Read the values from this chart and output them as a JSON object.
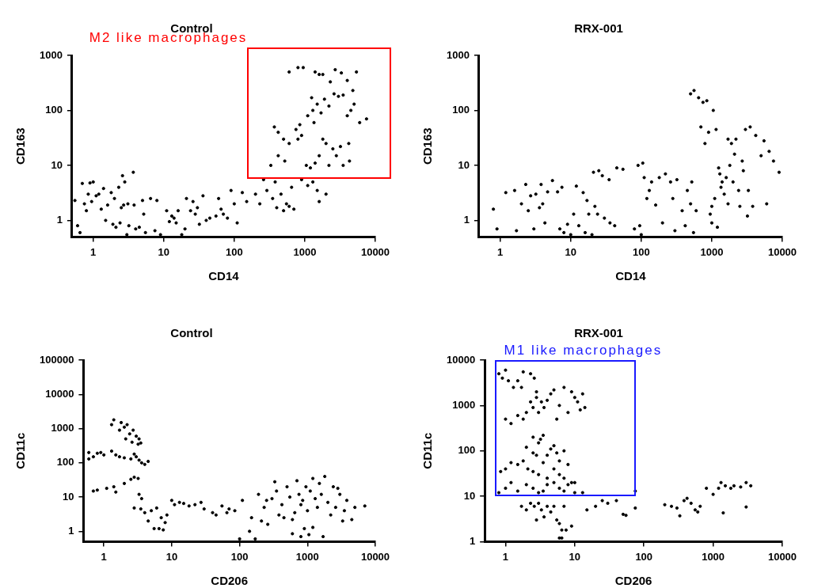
{
  "chart_data": [
    {
      "type": "scatter",
      "title": "Control",
      "xlabel": "CD14",
      "ylabel": "CD163",
      "annotations": [
        "M2 like macrophages"
      ],
      "log": "xy",
      "marker": "circle",
      "xlim": [
        0.5,
        10000
      ],
      "ylim": [
        0.5,
        1000
      ],
      "xticks": [
        1,
        10,
        100,
        1000,
        10000
      ],
      "yticks": [
        1,
        10,
        100,
        1000
      ],
      "series": [
        {
          "color": "#000000",
          "x": [
            0.55,
            0.6,
            0.65,
            0.7,
            0.75,
            0.8,
            0.85,
            0.9,
            0.95,
            1,
            1.1,
            1.2,
            1.3,
            1.4,
            1.5,
            1.6,
            1.8,
            1.9,
            2,
            2.1,
            2.3,
            2.4,
            2.5,
            2.6,
            2.7,
            2.8,
            3,
            3.1,
            3.2,
            3.7,
            3.8,
            4,
            4.5,
            5,
            5.2,
            5.5,
            6.5,
            7.5,
            8,
            9,
            11,
            12,
            13,
            14,
            15,
            16,
            18,
            20,
            21,
            24,
            26,
            28,
            30,
            32,
            36,
            40,
            45,
            55,
            60,
            65,
            70,
            80,
            90,
            100,
            110,
            130,
            150,
            200,
            230,
            260,
            290,
            330,
            350,
            380,
            400,
            420,
            460,
            500,
            520,
            550,
            600,
            650,
            700,
            900,
            1100,
            1300,
            1500,
            1600,
            2000,
            370,
            420,
            500,
            600,
            750,
            800,
            850,
            900,
            1050,
            1200,
            1400,
            1600,
            1800,
            2000,
            2200,
            2500,
            2800,
            3200,
            3500,
            4200,
            4300,
            1100,
            1300,
            1500,
            1700,
            1900,
            2200,
            2600,
            3000,
            3500,
            4000,
            4500,
            5000,
            6000,
            7500,
            1350,
            1250,
            600,
            800,
            950,
            1400,
            1600,
            1800,
            2700,
            3300,
            4000,
            5400,
            4800,
            2300
          ],
          "values": [
            2.3,
            0.8,
            0.6,
            4.7,
            2,
            1.5,
            3,
            4.8,
            2.2,
            5,
            2.8,
            3,
            1.6,
            3.8,
            1,
            1.9,
            3.2,
            0.85,
            2.5,
            0.75,
            4,
            0.9,
            1.7,
            6.5,
            1.9,
            5,
            0.55,
            2,
            0.8,
            7.5,
            1.9,
            0.7,
            0.75,
            2.3,
            1.3,
            0.6,
            2.5,
            0.65,
            2.3,
            0.55,
            1.5,
            0.95,
            1.2,
            1.1,
            0.9,
            1.5,
            0.55,
            0.7,
            2.5,
            1.5,
            2.2,
            1.3,
            1.7,
            0.85,
            2.8,
            1,
            1.1,
            1.2,
            2.5,
            1.6,
            1.3,
            1.1,
            3.5,
            2,
            0.9,
            3.2,
            2.2,
            3,
            2,
            5.5,
            3.5,
            10,
            2.5,
            5,
            1.7,
            15,
            3,
            1.5,
            12,
            2,
            1.8,
            4,
            1.6,
            5.5,
            4.3,
            5,
            3.5,
            2.2,
            3,
            50,
            40,
            30,
            25,
            45,
            30,
            55,
            35,
            10,
            9,
            11,
            15,
            30,
            25,
            10,
            20,
            15,
            22,
            10,
            25,
            12,
            80,
            100,
            130,
            90,
            160,
            120,
            200,
            180,
            190,
            80,
            100,
            130,
            60,
            70,
            60,
            170,
            500,
            600,
            600,
            500,
            450,
            450,
            550,
            480,
            350,
            500,
            230,
            330
          ]
        }
      ]
    },
    {
      "type": "scatter",
      "title": "RRX-001",
      "xlabel": "CD14",
      "ylabel": "CD163",
      "log": "xy",
      "marker": "circle",
      "xlim": [
        0.5,
        10000
      ],
      "ylim": [
        0.5,
        1000
      ],
      "xticks": [
        1,
        10,
        100,
        1000,
        10000
      ],
      "yticks": [
        1,
        10,
        100,
        1000
      ],
      "series": [
        {
          "color": "#000000",
          "x": [
            0.8,
            0.9,
            1.2,
            1.6,
            1.7,
            2,
            2.3,
            2.5,
            2.7,
            3,
            3.2,
            3.6,
            3.8,
            4,
            4.3,
            4.7,
            5.5,
            6.5,
            7,
            7.5,
            8,
            9,
            10,
            11,
            12,
            13,
            15,
            16,
            17,
            18,
            20,
            21,
            22,
            24,
            25,
            28,
            30,
            35,
            36,
            42,
            45,
            55,
            80,
            90,
            95,
            100,
            105,
            110,
            120,
            130,
            140,
            160,
            180,
            200,
            220,
            260,
            280,
            300,
            320,
            380,
            420,
            450,
            500,
            520,
            550,
            600,
            500,
            560,
            650,
            700,
            750,
            800,
            850,
            900,
            950,
            1000,
            1050,
            1100,
            1150,
            1200,
            1300,
            1400,
            1500,
            1600,
            1700,
            1800,
            1900,
            2100,
            2200,
            2400,
            2500,
            2700,
            3000,
            3200,
            3500,
            3800,
            4200,
            5000,
            5500,
            6000,
            6500,
            7500,
            9000,
            1250,
            1350,
            2000,
            2800,
            1000,
            1700,
            3300
          ],
          "values": [
            1.6,
            0.7,
            3.2,
            3.5,
            0.65,
            2,
            4.5,
            1.5,
            2.8,
            0.7,
            3,
            1.7,
            4.5,
            2,
            0.9,
            3.3,
            5.3,
            3.3,
            0.7,
            4,
            0.6,
            0.85,
            0.55,
            1.3,
            4.2,
            0.8,
            3.2,
            0.6,
            2.3,
            1.3,
            0.55,
            7.5,
            1.8,
            1.3,
            8,
            6.5,
            1.1,
            5.5,
            0.9,
            0.8,
            9,
            8.5,
            0.7,
            10,
            0.8,
            0.55,
            11,
            6,
            2.5,
            3.5,
            5,
            1.9,
            6,
            0.9,
            7,
            5,
            2.5,
            0.65,
            5.5,
            1.5,
            0.8,
            3.5,
            2,
            5,
            0.6,
            1.5,
            200,
            230,
            170,
            50,
            140,
            25,
            150,
            40,
            1.3,
            1.8,
            100,
            2.5,
            45,
            0.75,
            7,
            5,
            3,
            6,
            2,
            10,
            25,
            16,
            30,
            3.5,
            1.8,
            12,
            45,
            1.2,
            50,
            1.8,
            35,
            15,
            28,
            2,
            18,
            12,
            7.5,
            9,
            4,
            5,
            8,
            0.9,
            30,
            3.5
          ]
        }
      ]
    },
    {
      "type": "scatter",
      "title": "Control",
      "xlabel": "CD206",
      "ylabel": "CD11c",
      "log": "xy",
      "marker": "circle",
      "xlim": [
        0.5,
        10000
      ],
      "ylim": [
        0.5,
        100000
      ],
      "xticks": [
        1,
        10,
        100,
        1000,
        10000
      ],
      "yticks": [
        1,
        10,
        100,
        1000,
        10000,
        100000
      ],
      "series": [
        {
          "color": "#000000",
          "x": [
            0.6,
            0.6,
            0.7,
            0.8,
            0.9,
            1,
            1.3,
            1.5,
            1.7,
            2,
            2.5,
            2.8,
            3,
            3.3,
            3.6,
            4,
            4.5,
            0.7,
            0.8,
            1.1,
            1.4,
            1.5,
            2,
            2.5,
            2.8,
            3.2,
            1.3,
            1.4,
            1.7,
            1.8,
            2,
            2.1,
            2.2,
            2.4,
            2.6,
            2.7,
            3,
            3.2,
            3.3,
            3.5,
            3.3,
            3.6,
            2.8,
            3.5,
            4,
            4.5,
            5,
            5.5,
            6,
            6.5,
            7,
            7.5,
            8,
            8.5,
            10,
            11,
            13,
            15,
            18,
            22,
            27,
            30,
            40,
            45,
            55,
            65,
            70,
            85,
            100,
            110,
            140,
            150,
            170,
            190,
            210,
            230,
            260,
            300,
            330,
            350,
            380,
            420,
            450,
            500,
            550,
            600,
            650,
            700,
            750,
            800,
            850,
            900,
            950,
            1000,
            1050,
            1100,
            1200,
            1300,
            1400,
            1500,
            1700,
            1800,
            2000,
            2200,
            2400,
            2600,
            3000,
            3300,
            3500,
            3800,
            4500,
            5000,
            7000,
            600,
            800,
            1200,
            250,
            1600,
            2800
          ],
          "values": [
            200,
            130,
            150,
            190,
            200,
            170,
            220,
            170,
            150,
            140,
            130,
            180,
            150,
            120,
            100,
            90,
            110,
            15,
            16,
            18,
            20,
            14,
            25,
            33,
            38,
            35,
            1300,
            1800,
            900,
            1500,
            1100,
            500,
            1300,
            700,
            400,
            900,
            600,
            350,
            500,
            380,
            12,
            9,
            4.8,
            4.5,
            3.5,
            2,
            4,
            1.2,
            4.8,
            1.2,
            2.5,
            1.1,
            1.8,
            3,
            8,
            6,
            7,
            6.5,
            5.5,
            6,
            7,
            4.5,
            3.5,
            3,
            5.5,
            3.5,
            4.5,
            4,
            0.6,
            8,
            1,
            2.5,
            0.6,
            12,
            2,
            5,
            1.6,
            9,
            28,
            15,
            3,
            6,
            2.5,
            20,
            10,
            2.2,
            3.5,
            30,
            12,
            6,
            8,
            1.2,
            20,
            4,
            0.8,
            15,
            35,
            9,
            5,
            25,
            0.7,
            40,
            7,
            3,
            20,
            5,
            12,
            2,
            4,
            8,
            2.2,
            5,
            5.5,
            0.85,
            0.7,
            1.3,
            8,
            12,
            18
          ]
        }
      ]
    },
    {
      "type": "scatter",
      "title": "RRX-001",
      "xlabel": "CD206",
      "ylabel": "CD11c",
      "annotations": [
        "M1 like macrophages"
      ],
      "log": "xy",
      "marker": "circle",
      "xlim": [
        0.5,
        10000
      ],
      "ylim": [
        1,
        10000
      ],
      "xticks": [
        1,
        10,
        100,
        1000,
        10000
      ],
      "yticks": [
        1,
        10,
        100,
        1000,
        10000
      ],
      "series": [
        {
          "color": "#000000",
          "x": [
            0.8,
            0.9,
            1,
            1.1,
            1.3,
            1.5,
            1.7,
            1.8,
            2.3,
            2.6,
            2.8,
            1,
            1.2,
            1.5,
            1.8,
            2,
            2.3,
            2.5,
            2.8,
            3,
            3.3,
            3.6,
            4,
            4.5,
            5,
            5.5,
            6,
            7,
            8,
            9,
            10,
            11,
            12,
            14,
            13,
            2.5,
            3,
            3.2,
            3.5,
            2,
            2.5,
            2.8,
            4,
            4.5,
            5,
            5.5,
            6,
            7,
            0.85,
            1,
            1.2,
            1.5,
            1.8,
            2.1,
            2.5,
            3,
            3.5,
            4,
            5,
            6,
            7,
            8,
            9,
            10,
            0.8,
            1,
            1.2,
            1.5,
            2,
            2.5,
            3,
            3.5,
            4,
            5,
            6,
            7,
            8,
            10,
            13,
            75,
            1.7,
            2,
            2.3,
            2.6,
            2.8,
            3,
            3.3,
            3.6,
            4,
            4.5,
            5,
            5.5,
            6,
            6.5,
            7,
            7.5,
            9,
            6,
            6.5,
            15,
            20,
            25,
            30,
            40,
            50,
            55,
            75,
            200,
            250,
            300,
            330,
            380,
            420,
            480,
            550,
            600,
            650,
            800,
            1000,
            1200,
            1300,
            1500,
            1800,
            2000,
            2500,
            3000,
            3500,
            1400,
            3000
          ],
          "values": [
            5000,
            4000,
            6000,
            3500,
            2500,
            3500,
            2500,
            5500,
            5000,
            4000,
            2000,
            500,
            400,
            600,
            500,
            700,
            1200,
            900,
            1500,
            700,
            1200,
            900,
            1300,
            1800,
            2200,
            500,
            1000,
            2500,
            700,
            2000,
            1500,
            1200,
            800,
            900,
            1800,
            200,
            150,
            180,
            220,
            120,
            90,
            80,
            80,
            110,
            130,
            90,
            60,
            100,
            35,
            40,
            55,
            50,
            60,
            40,
            35,
            30,
            55,
            25,
            40,
            30,
            25,
            50,
            20,
            20,
            12,
            15,
            20,
            13,
            18,
            15,
            12,
            13,
            18,
            20,
            15,
            13,
            18,
            12,
            12,
            13,
            6,
            5,
            7,
            6,
            3,
            7,
            5,
            3.5,
            6,
            4.5,
            6,
            3,
            2.5,
            1.8,
            6,
            1.8,
            2.2,
            1.2,
            1.2,
            5,
            6,
            8,
            7,
            8,
            4,
            3.8,
            5.5,
            6.5,
            6,
            5.5,
            3.7,
            8,
            9,
            7,
            5,
            4.5,
            6,
            15,
            11,
            15,
            20,
            17,
            15,
            17,
            16,
            20,
            17,
            4.3,
            5.8
          ]
        }
      ]
    }
  ]
}
